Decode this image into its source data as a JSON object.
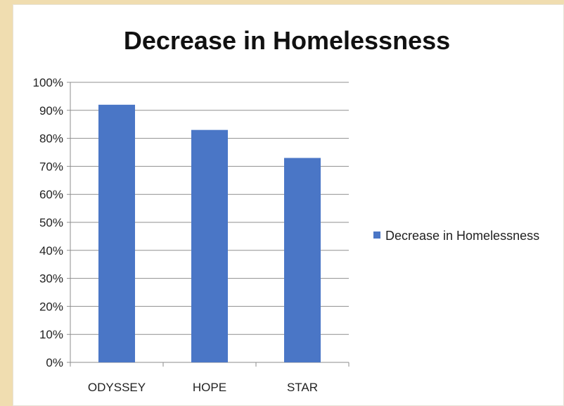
{
  "chart_data": {
    "type": "bar",
    "title": "Decrease in Homelessness",
    "categories": [
      "ODYSSEY",
      "HOPE",
      "STAR"
    ],
    "series": [
      {
        "name": "Decrease in Homelessness",
        "values": [
          92,
          83,
          73
        ],
        "color": "#4a76c6"
      }
    ],
    "ylim": [
      0,
      100
    ],
    "yticks": [
      "0%",
      "10%",
      "20%",
      "30%",
      "40%",
      "50%",
      "60%",
      "70%",
      "80%",
      "90%",
      "100%"
    ],
    "grid": true,
    "legend_position": "right"
  }
}
